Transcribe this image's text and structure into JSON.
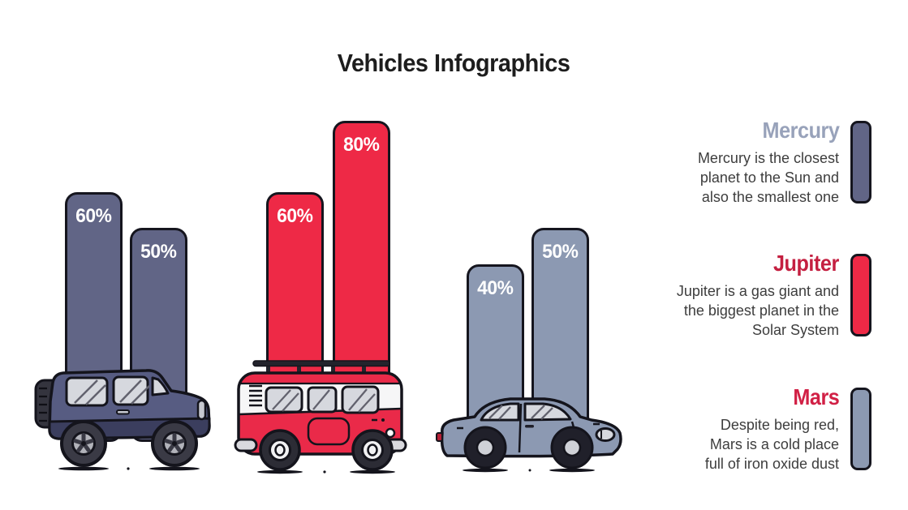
{
  "title": "Vehicles Infographics",
  "colors": {
    "outline": "#15151e",
    "bar_label": "#ffffff",
    "dark_slate": "#616586",
    "red": "#ee2946",
    "gray_blue": "#8c99b2",
    "body_text": "#3d3d3d",
    "title_text": "#1d1d1d"
  },
  "chart_data": {
    "type": "bar",
    "title": "Vehicles Infographics",
    "unit": "percent",
    "ylim": [
      0,
      100
    ],
    "grid": false,
    "legend_position": "right",
    "groups": [
      {
        "vehicle": "jeep-suv",
        "color": "#616586",
        "values": [
          60,
          50
        ],
        "labels": [
          "60%",
          "50%"
        ]
      },
      {
        "vehicle": "camper-van",
        "color": "#ee2946",
        "values": [
          60,
          80
        ],
        "labels": [
          "60%",
          "80%"
        ]
      },
      {
        "vehicle": "sedan-car",
        "color": "#8c99b2",
        "values": [
          40,
          50
        ],
        "labels": [
          "40%",
          "50%"
        ]
      }
    ]
  },
  "legend": [
    {
      "heading": "Mercury",
      "heading_color": "#98a2ba",
      "pill_color": "#616586",
      "lines": [
        "Mercury is the closest",
        "planet to the Sun and",
        "also the smallest one"
      ]
    },
    {
      "heading": "Jupiter",
      "heading_color": "#c41f40",
      "pill_color": "#ee2946",
      "lines": [
        "Jupiter is a gas giant and",
        "the biggest planet in the",
        "Solar System"
      ]
    },
    {
      "heading": "Mars",
      "heading_color": "#d12045",
      "pill_color": "#8c99b2",
      "lines": [
        "Despite being red,",
        "Mars is a cold place",
        "full of iron oxide dust"
      ]
    }
  ]
}
